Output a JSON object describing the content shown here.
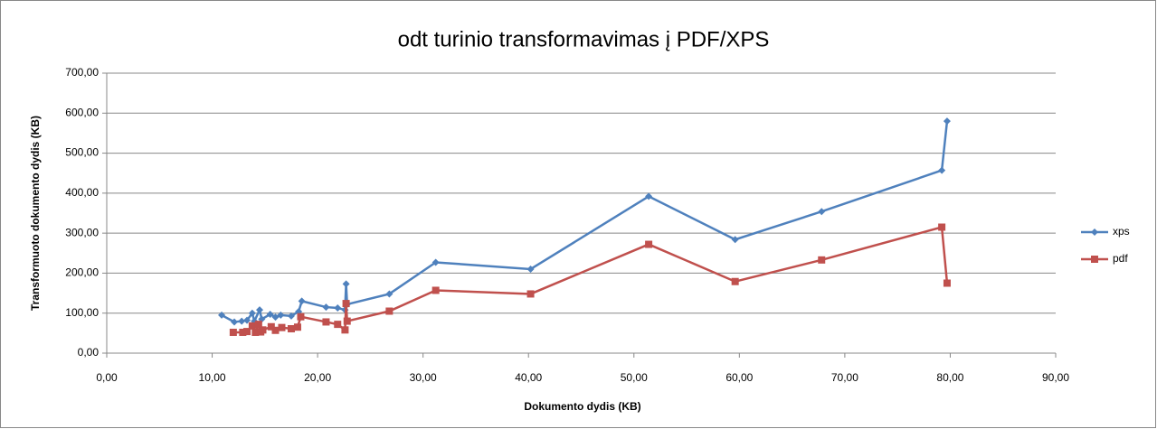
{
  "chart_data": {
    "type": "line",
    "title": "odt turinio transformavimas į PDF/XPS",
    "x_label": "Dokumento dydis (KB)",
    "y_label": "Transformuoto dokumento dydis  (KB)",
    "legend": "right",
    "grid": true,
    "xlim": [
      0,
      90
    ],
    "ylim": [
      0,
      700
    ],
    "xticks": [
      {
        "value": 0,
        "label": "0,00"
      },
      {
        "value": 10,
        "label": "10,00"
      },
      {
        "value": 20,
        "label": "20,00"
      },
      {
        "value": 30,
        "label": "30,00"
      },
      {
        "value": 40,
        "label": "40,00"
      },
      {
        "value": 50,
        "label": "50,00"
      },
      {
        "value": 60,
        "label": "60,00"
      },
      {
        "value": 70,
        "label": "70,00"
      },
      {
        "value": 80,
        "label": "80,00"
      },
      {
        "value": 90,
        "label": "90,00"
      }
    ],
    "yticks": [
      {
        "value": 0,
        "label": "0,00"
      },
      {
        "value": 100,
        "label": "100,00"
      },
      {
        "value": 200,
        "label": "200,00"
      },
      {
        "value": 300,
        "label": "300,00"
      },
      {
        "value": 400,
        "label": "400,00"
      },
      {
        "value": 500,
        "label": "500,00"
      },
      {
        "value": 600,
        "label": "600,00"
      },
      {
        "value": 700,
        "label": "700,00"
      }
    ],
    "series": [
      {
        "name": "xps",
        "color": "#4f81bd",
        "marker": "diamond",
        "x": [
          10.9,
          12.1,
          12.8,
          13.3,
          13.8,
          14.0,
          14.5,
          14.7,
          15.5,
          16.0,
          16.5,
          17.5,
          18.2,
          18.5,
          20.8,
          21.9,
          22.6,
          22.7,
          22.8,
          26.8,
          31.2,
          40.2,
          51.4,
          59.6,
          67.8,
          79.2,
          79.7
        ],
        "values": [
          95,
          78,
          80,
          82,
          100,
          80,
          108,
          85,
          97,
          90,
          95,
          93,
          104,
          130,
          115,
          113,
          108,
          173,
          122,
          148,
          227,
          210,
          392,
          284,
          354,
          457,
          580
        ]
      },
      {
        "name": "pdf",
        "color": "#c0504d",
        "marker": "square",
        "x": [
          12.0,
          12.9,
          13.3,
          13.8,
          14.1,
          14.4,
          14.6,
          14.8,
          15.6,
          16.0,
          16.6,
          17.5,
          18.1,
          18.4,
          20.8,
          21.9,
          22.6,
          22.7,
          22.8,
          26.8,
          31.2,
          40.2,
          51.4,
          59.6,
          67.8,
          79.2,
          79.7
        ],
        "values": [
          52,
          52,
          54,
          68,
          52,
          72,
          53,
          58,
          66,
          57,
          64,
          61,
          65,
          91,
          78,
          72,
          58,
          124,
          80,
          105,
          157,
          148,
          272,
          179,
          233,
          315,
          175
        ]
      }
    ]
  }
}
